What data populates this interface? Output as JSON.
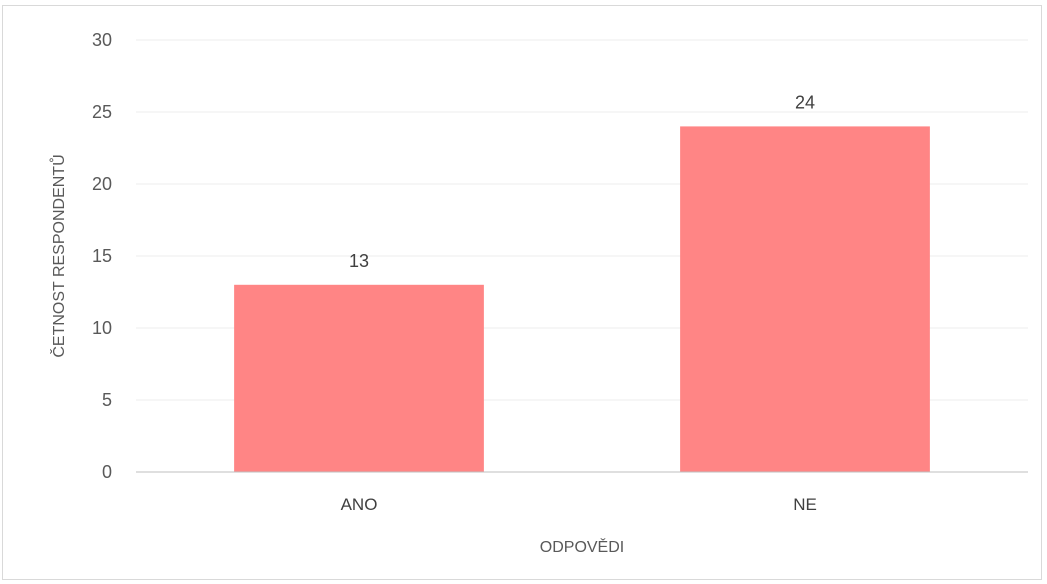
{
  "chart_data": {
    "type": "bar",
    "categories": [
      "ANO",
      "NE"
    ],
    "values": [
      13,
      24
    ],
    "title": "",
    "xlabel": "ODPOVĚDI",
    "ylabel": "ČETNOST RESPONDENTŮ",
    "ylim": [
      0,
      30
    ],
    "yticks": [
      0,
      5,
      10,
      15,
      20,
      25,
      30
    ],
    "grid": true,
    "legend": "none",
    "colors": {
      "bar": "#ff8585",
      "grid": "#ececec",
      "axis": "#bfbfbf"
    }
  }
}
